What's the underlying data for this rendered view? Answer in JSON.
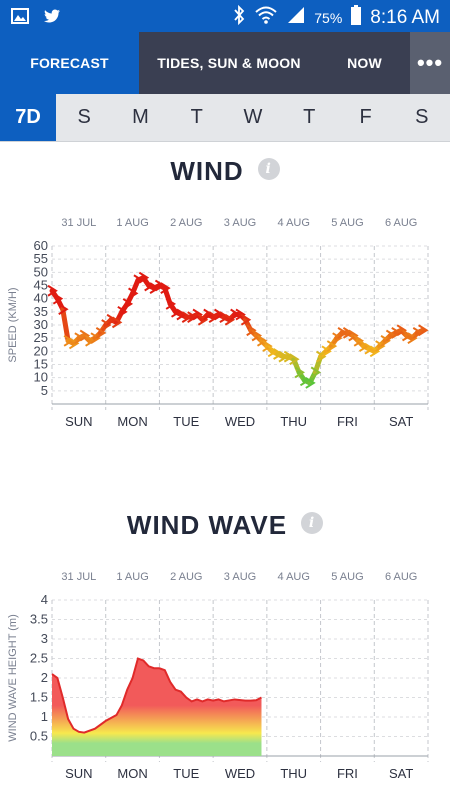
{
  "status_bar": {
    "icons_left": [
      "image-icon",
      "twitter-icon"
    ],
    "icons_right": [
      "bluetooth-icon",
      "wifi-icon",
      "signal-icon",
      "battery-icon"
    ],
    "battery": "75%",
    "time": "8:16 AM"
  },
  "tabs": [
    {
      "label": "FORECAST",
      "active": true
    },
    {
      "label": "TIDES, SUN & MOON",
      "active": false
    },
    {
      "label": "NOW",
      "active": false
    }
  ],
  "more_label": "•••",
  "days": [
    "7D",
    "S",
    "M",
    "T",
    "W",
    "T",
    "F",
    "S"
  ],
  "wind": {
    "title": "WIND",
    "info": "i"
  },
  "wind_wave": {
    "title": "WIND WAVE",
    "info": "i"
  },
  "chart_data": [
    {
      "type": "line",
      "title": "WIND",
      "ylabel": "SPEED (KM/H)",
      "ylim": [
        0,
        60
      ],
      "yticks": [
        5,
        10,
        15,
        20,
        25,
        30,
        35,
        40,
        45,
        50,
        55,
        60
      ],
      "date_labels": [
        "31 JUL",
        "1 AUG",
        "2 AUG",
        "3 AUG",
        "4 AUG",
        "5 AUG",
        "6 AUG"
      ],
      "day_labels": [
        "SUN",
        "MON",
        "TUE",
        "WED",
        "THU",
        "FRI",
        "SAT"
      ],
      "grid": true,
      "color_scale": {
        "low": "#59c43a",
        "mid": "#f2b51d",
        "high": "#e01b12"
      },
      "series": [
        {
          "x": [
            0,
            0.1,
            0.2,
            0.3,
            0.4,
            0.5,
            0.6,
            0.7,
            0.8,
            0.9,
            1.0,
            1.1,
            1.2,
            1.3,
            1.4,
            1.5,
            1.6,
            1.7,
            1.8,
            1.9,
            2.0,
            2.1,
            2.2,
            2.3,
            2.4,
            2.5,
            2.6,
            2.7,
            2.8,
            2.9,
            3.0,
            3.1,
            3.2,
            3.3,
            3.4,
            3.5,
            3.6,
            3.7,
            3.8,
            3.9,
            4.0,
            4.1,
            4.2,
            4.3,
            4.4,
            4.5,
            4.6,
            4.7,
            4.8,
            4.9,
            5.0,
            5.1,
            5.2,
            5.3,
            5.4,
            5.5,
            5.6,
            5.7,
            5.8,
            5.9,
            6.0,
            6.1,
            6.2,
            6.3,
            6.4,
            6.5,
            6.6,
            6.7,
            6.8,
            6.9
          ],
          "values": [
            43,
            40,
            36,
            24,
            23,
            25,
            26,
            24,
            25,
            27,
            30,
            32,
            31,
            35,
            38,
            42,
            47,
            48,
            45,
            44,
            45,
            44,
            38,
            35,
            34,
            33,
            33,
            34,
            32,
            34,
            33,
            34,
            33,
            32,
            34,
            34,
            32,
            28,
            26,
            24,
            22,
            20,
            19,
            18,
            18,
            17,
            12,
            9,
            8,
            12,
            18,
            20,
            22,
            25,
            27,
            27,
            26,
            24,
            22,
            21,
            20,
            22,
            24,
            26,
            27,
            28,
            26,
            25,
            27,
            28
          ]
        }
      ]
    },
    {
      "type": "area",
      "title": "WIND WAVE",
      "ylabel": "WIND WAVE HEIGHT (m)",
      "ylim": [
        0,
        4
      ],
      "yticks": [
        0.5,
        1,
        1.5,
        2,
        2.5,
        3,
        3.5,
        4
      ],
      "date_labels": [
        "31 JUL",
        "1 AUG",
        "2 AUG",
        "3 AUG",
        "4 AUG",
        "5 AUG",
        "6 AUG"
      ],
      "day_labels": [
        "SUN",
        "MON",
        "TUE",
        "WED",
        "THU",
        "FRI",
        "SAT"
      ],
      "grid": true,
      "fill_colors": {
        "low": "#9be08a",
        "mid": "#f7e84e",
        "high": "#f25a5a"
      },
      "series": [
        {
          "x": [
            0,
            0.1,
            0.2,
            0.3,
            0.4,
            0.5,
            0.6,
            0.8,
            1.0,
            1.2,
            1.3,
            1.4,
            1.5,
            1.6,
            1.7,
            1.8,
            1.9,
            2.0,
            2.1,
            2.2,
            2.3,
            2.4,
            2.5,
            2.6,
            2.7,
            2.8,
            2.9,
            3.0,
            3.1,
            3.2,
            3.4,
            3.6,
            3.7,
            3.8,
            3.9
          ],
          "values": [
            2.1,
            2.0,
            1.5,
            0.95,
            0.7,
            0.62,
            0.6,
            0.7,
            0.9,
            1.05,
            1.3,
            1.7,
            2.0,
            2.5,
            2.45,
            2.3,
            2.25,
            2.25,
            2.2,
            1.9,
            1.7,
            1.65,
            1.5,
            1.4,
            1.45,
            1.4,
            1.45,
            1.42,
            1.45,
            1.4,
            1.45,
            1.42,
            1.42,
            1.43,
            1.5
          ]
        }
      ]
    }
  ]
}
